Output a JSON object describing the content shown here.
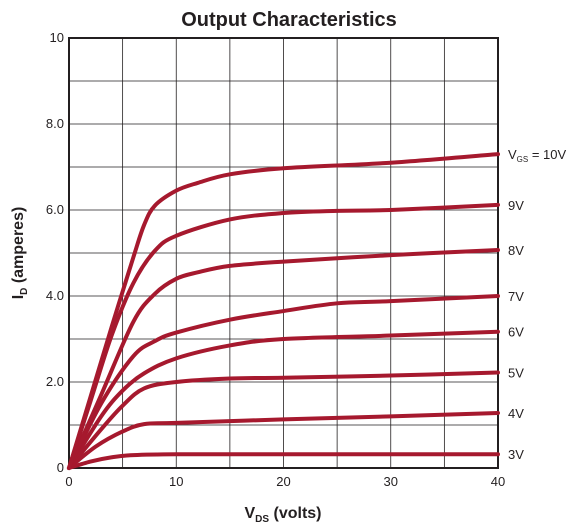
{
  "chart_data": {
    "type": "line",
    "title": "Output Characteristics",
    "xlabel": {
      "main": "V",
      "sub": "DS",
      "rest": " (volts)"
    },
    "ylabel": {
      "main": "I",
      "sub": "D",
      "rest": " (amperes)"
    },
    "xlim": [
      0,
      40
    ],
    "ylim": [
      0,
      10
    ],
    "x_ticks": [
      0,
      10,
      20,
      30,
      40
    ],
    "x_tick_labels": [
      "0",
      "10",
      "20",
      "30",
      "40"
    ],
    "y_ticks": [
      0,
      2,
      4,
      6,
      8,
      10
    ],
    "y_tick_labels": [
      "0",
      "2.0",
      "4.0",
      "6.0",
      "8.0",
      "10"
    ],
    "grid": true,
    "grid_x_step": 5,
    "grid_y_step": 1,
    "line_color": "#a6192e",
    "series": [
      {
        "label": "3V",
        "label_prefix": "",
        "x": [
          0,
          2,
          4,
          6,
          10,
          20,
          30,
          40
        ],
        "y": [
          0,
          0.15,
          0.25,
          0.3,
          0.32,
          0.32,
          0.32,
          0.32
        ]
      },
      {
        "label": "4V",
        "label_prefix": "",
        "x": [
          0,
          2.5,
          5,
          7,
          10,
          20,
          30,
          40
        ],
        "y": [
          0,
          0.5,
          0.85,
          1.02,
          1.05,
          1.13,
          1.2,
          1.28
        ]
      },
      {
        "label": "5V",
        "label_prefix": "",
        "x": [
          0,
          3,
          5,
          7,
          10,
          15,
          20,
          30,
          40
        ],
        "y": [
          0,
          0.9,
          1.45,
          1.85,
          2.0,
          2.08,
          2.1,
          2.15,
          2.22
        ]
      },
      {
        "label": "6V",
        "label_prefix": "",
        "x": [
          0,
          3,
          5,
          7,
          10,
          15,
          20,
          30,
          40
        ],
        "y": [
          0,
          1.2,
          1.8,
          2.2,
          2.55,
          2.85,
          3.0,
          3.08,
          3.17
        ]
      },
      {
        "label": "7V",
        "label_prefix": "",
        "x": [
          0,
          3,
          6,
          8,
          10,
          15,
          20,
          25,
          30,
          40
        ],
        "y": [
          0,
          1.5,
          2.6,
          2.95,
          3.15,
          3.45,
          3.65,
          3.83,
          3.88,
          4.0
        ]
      },
      {
        "label": "8V",
        "label_prefix": "",
        "x": [
          0,
          3,
          6,
          8,
          10,
          12,
          15,
          20,
          30,
          40
        ],
        "y": [
          0,
          1.7,
          3.4,
          4.05,
          4.4,
          4.55,
          4.7,
          4.8,
          4.95,
          5.07
        ]
      },
      {
        "label": "9V",
        "label_prefix": "",
        "x": [
          0,
          2,
          4,
          6,
          8,
          10,
          15,
          20,
          25,
          30,
          40
        ],
        "y": [
          0,
          1.55,
          3.1,
          4.3,
          5.05,
          5.4,
          5.78,
          5.93,
          5.98,
          6.0,
          6.12
        ]
      },
      {
        "label": "= 10V",
        "label_prefix": {
          "main": "V",
          "sub": "GS"
        },
        "x": [
          0,
          2,
          4,
          6,
          7,
          8,
          10,
          12,
          15,
          20,
          30,
          40
        ],
        "y": [
          0,
          1.65,
          3.3,
          4.9,
          5.65,
          6.1,
          6.45,
          6.63,
          6.83,
          6.97,
          7.1,
          7.3
        ]
      }
    ]
  }
}
